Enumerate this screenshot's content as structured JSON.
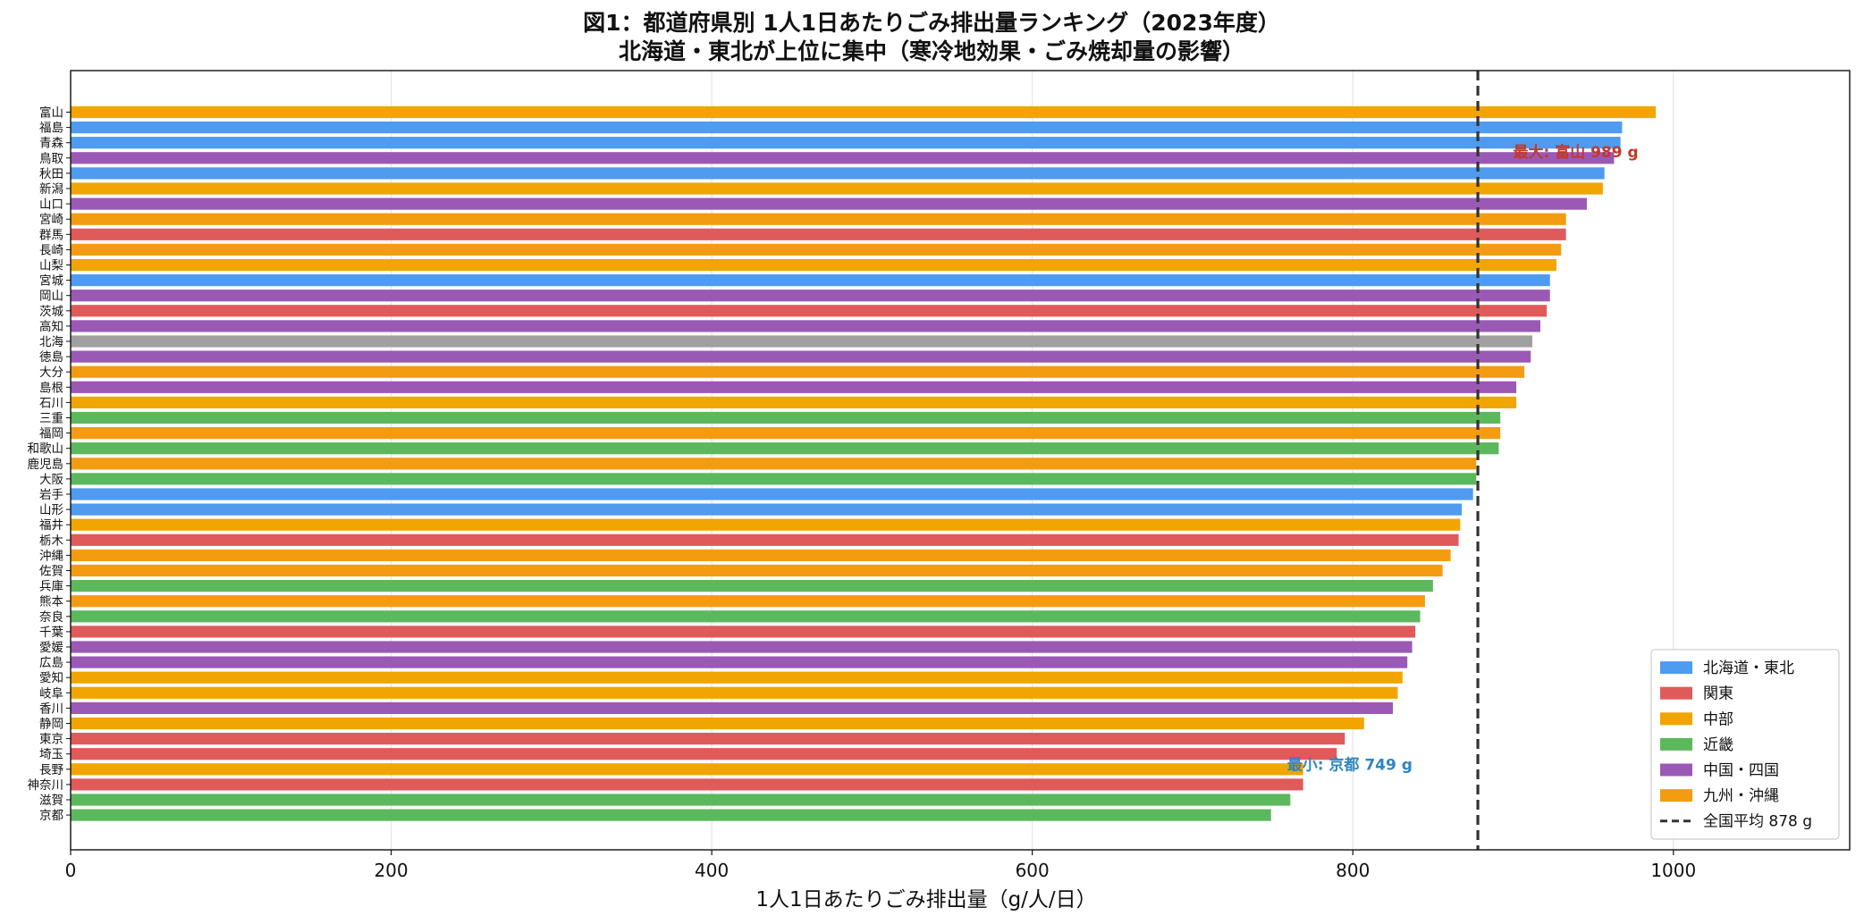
{
  "chart_data": {
    "type": "bar",
    "orientation": "horizontal",
    "title": "図1：都道府県別 1人1日あたりごみ排出量ランキング（2023年度）",
    "subtitle": "北海道・東北が上位に集中（寒冷地効果・ごみ焼却量の影響）",
    "xlabel": "1人1日あたりごみ排出量（g/人/日）",
    "ylabel": "",
    "xlim": [
      0,
      1110
    ],
    "xticks": [
      0,
      200,
      400,
      600,
      800,
      1000
    ],
    "grid": "vertical",
    "legend_position": "bottom-right",
    "colors": {
      "北海道・東北": "#4e9bf0",
      "関東": "#e05a5a",
      "中部": "#f0a500",
      "近畿": "#5cb85c",
      "中国・四国": "#9b59b6",
      "九州・沖縄": "#f39c12",
      "北海道": "#a0a0a0"
    },
    "legend": [
      {
        "label": "北海道・東北",
        "region": "北海道・東北",
        "kind": "bar"
      },
      {
        "label": "関東",
        "region": "関東",
        "kind": "bar"
      },
      {
        "label": "中部",
        "region": "中部",
        "kind": "bar"
      },
      {
        "label": "近畿",
        "region": "近畿",
        "kind": "bar"
      },
      {
        "label": "中国・四国",
        "region": "中国・四国",
        "kind": "bar"
      },
      {
        "label": "九州・沖縄",
        "region": "九州・沖縄",
        "kind": "bar"
      },
      {
        "label": "全国平均 878 g",
        "kind": "line"
      }
    ],
    "categories": [
      "富山",
      "福島",
      "青森",
      "鳥取",
      "秋田",
      "新潟",
      "山口",
      "宮崎",
      "群馬",
      "長崎",
      "山梨",
      "宮城",
      "岡山",
      "茨城",
      "高知",
      "北海",
      "徳島",
      "大分",
      "島根",
      "石川",
      "三重",
      "福岡",
      "和歌山",
      "鹿児島",
      "大阪",
      "岩手",
      "山形",
      "福井",
      "栃木",
      "沖縄",
      "佐賀",
      "兵庫",
      "熊本",
      "奈良",
      "千葉",
      "愛媛",
      "広島",
      "愛知",
      "岐阜",
      "香川",
      "静岡",
      "東京",
      "埼玉",
      "長野",
      "神奈川",
      "滋賀",
      "京都"
    ],
    "values": [
      989,
      968,
      967,
      963,
      957,
      956,
      946,
      933,
      933,
      930,
      927,
      923,
      923,
      921,
      917,
      912,
      911,
      907,
      902,
      902,
      892,
      892,
      891,
      877,
      877,
      875,
      868,
      867,
      866,
      861,
      856,
      850,
      845,
      842,
      839,
      837,
      834,
      831,
      828,
      825,
      807,
      795,
      790,
      769,
      769,
      761,
      749
    ],
    "regions": [
      "中部",
      "北海道・東北",
      "北海道・東北",
      "中国・四国",
      "北海道・東北",
      "中部",
      "中国・四国",
      "九州・沖縄",
      "関東",
      "九州・沖縄",
      "中部",
      "北海道・東北",
      "中国・四国",
      "関東",
      "中国・四国",
      "北海道",
      "中国・四国",
      "九州・沖縄",
      "中国・四国",
      "中部",
      "近畿",
      "九州・沖縄",
      "近畿",
      "九州・沖縄",
      "近畿",
      "北海道・東北",
      "北海道・東北",
      "中部",
      "関東",
      "九州・沖縄",
      "九州・沖縄",
      "近畿",
      "九州・沖縄",
      "近畿",
      "関東",
      "中国・四国",
      "中国・四国",
      "中部",
      "中部",
      "中国・四国",
      "中部",
      "関東",
      "関東",
      "中部",
      "関東",
      "近畿",
      "近畿"
    ],
    "reference_line": {
      "value": 878,
      "label": "全国平均 878 g",
      "color": "#333333",
      "style": "dashed"
    },
    "annotations": [
      {
        "text": "最大: 富山 989 g",
        "x": 900,
        "category_index": 2.6,
        "color": "#c0392b"
      },
      {
        "text": "最小: 京都 749 g",
        "x": 759,
        "category_index": 42.7,
        "color": "#2e86c1"
      }
    ]
  }
}
